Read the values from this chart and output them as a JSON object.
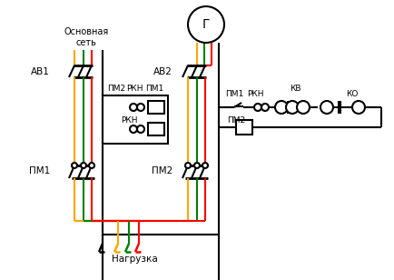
{
  "bg_color": "#ffffff",
  "wire_colors": {
    "orange": "#FFA500",
    "green": "#008000",
    "red": "#FF0000",
    "black": "#000000"
  },
  "labels": {
    "osnov_set": "Основная\nсеть",
    "av1": "АВ1",
    "av2": "АВ2",
    "pm1_left": "ПМ1",
    "pm2_right_label": "ПМ2",
    "pm1_ctrl": "ПМ1",
    "pm2_ctrl": "ПМ2",
    "rkh1": "РКН",
    "rkh2": "РКН",
    "rkh_right": "РКН",
    "kv": "КВ",
    "ko": "КО",
    "generator": "Г",
    "nagruzka": "Нагрузка"
  }
}
